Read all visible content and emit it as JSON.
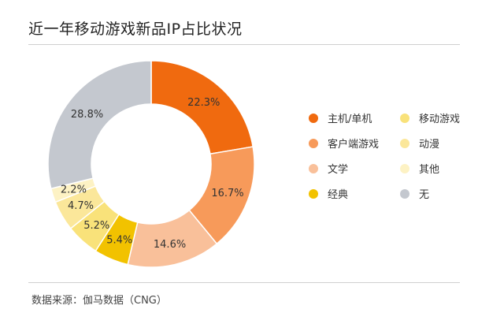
{
  "header": {
    "title": "近一年移动游戏新品IP占比状况"
  },
  "footer": {
    "source": "数据来源：伽马数据（CNG）"
  },
  "chart_data": {
    "type": "pie",
    "title": "近一年移动游戏新品IP占比状况",
    "donut": true,
    "legend_position": "right",
    "categories": [
      "主机/单机",
      "客户端游戏",
      "文学",
      "经典",
      "移动游戏",
      "动漫",
      "其他",
      "无"
    ],
    "values": [
      22.3,
      16.7,
      14.6,
      5.4,
      5.2,
      4.7,
      2.2,
      28.8
    ],
    "labels": [
      "22.3%",
      "16.7%",
      "14.6%",
      "5.4%",
      "5.2%",
      "4.7%",
      "2.2%",
      "28.8%"
    ],
    "colors": [
      "#f06a0f",
      "#f79a5a",
      "#f9c09a",
      "#f2c200",
      "#f9e27a",
      "#fbe79a",
      "#fdf2c4",
      "#c4c8cf"
    ],
    "label_colors": [
      "#333333",
      "#333333",
      "#333333",
      "#333333",
      "#333333",
      "#333333",
      "#333333",
      "#333333"
    ]
  }
}
